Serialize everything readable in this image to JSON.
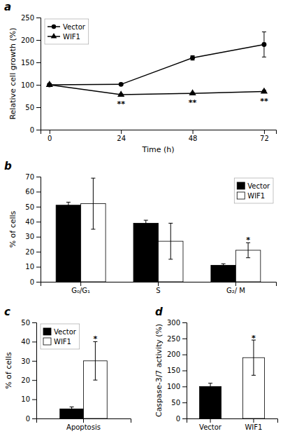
{
  "chart_data": [
    {
      "type": "line",
      "title": "a",
      "xlabel": "Time (h)",
      "ylabel": "Relative cell growth (%)",
      "x": [
        0,
        24,
        48,
        72
      ],
      "xlim": [
        -3,
        76
      ],
      "xticks": [
        0,
        24,
        48,
        72
      ],
      "ylim": [
        0,
        250
      ],
      "yticks": [
        0,
        50,
        100,
        150,
        200,
        250
      ],
      "series": [
        {
          "name": "Vector",
          "color": "#000000",
          "marker": "circle",
          "line_style": "solid",
          "values": [
            100,
            101,
            160,
            190
          ],
          "errors": [
            2,
            2,
            5,
            28
          ]
        },
        {
          "name": "WIF1",
          "color": "#000000",
          "marker": "triangle",
          "line_style": "solid",
          "values": [
            100,
            78,
            81,
            85
          ],
          "errors": [
            2,
            2,
            2,
            3
          ]
        }
      ],
      "annotations": [
        {
          "text": "**",
          "x": 24,
          "y": 66
        },
        {
          "text": "**",
          "x": 48,
          "y": 69
        },
        {
          "text": "**",
          "x": 72,
          "y": 72
        }
      ],
      "legend": "upper left",
      "grid": false
    },
    {
      "type": "bar",
      "title": "b",
      "ylabel": "% of cells",
      "categories": [
        "G₀/G₁",
        "S",
        "G₂/ M"
      ],
      "ylim": [
        0,
        70
      ],
      "yticks": [
        0,
        10,
        20,
        30,
        40,
        50,
        60,
        70
      ],
      "series": [
        {
          "name": "Vector",
          "color": "#000000",
          "values": [
            51,
            39,
            11
          ],
          "errors": [
            2,
            2,
            1
          ]
        },
        {
          "name": "WIF1",
          "color": "#ffffff",
          "values": [
            52,
            27,
            21
          ],
          "errors": [
            17,
            12,
            5
          ]
        }
      ],
      "annotations": [
        {
          "text": "*",
          "x": "G₂/ M",
          "series": "WIF1",
          "y": 27
        }
      ],
      "legend": "upper right",
      "grid": false
    },
    {
      "type": "bar",
      "title": "c",
      "ylabel": "% of cells",
      "categories": [
        "Apoptosis"
      ],
      "ylim": [
        0,
        50
      ],
      "yticks": [
        0,
        10,
        20,
        30,
        40,
        50
      ],
      "series": [
        {
          "name": "Vector",
          "color": "#000000",
          "values": [
            5
          ],
          "errors": [
            1
          ]
        },
        {
          "name": "WIF1",
          "color": "#ffffff",
          "values": [
            30
          ],
          "errors": [
            10
          ]
        }
      ],
      "annotations": [
        {
          "text": "*",
          "x": "Apoptosis",
          "series": "WIF1",
          "y": 41
        }
      ],
      "legend": "upper left",
      "grid": false
    },
    {
      "type": "bar",
      "title": "d",
      "ylabel": "Caspase-3/7 activity (%)",
      "categories": [
        "Vector",
        "WIF1"
      ],
      "values": [
        100,
        190
      ],
      "errors": [
        10,
        55
      ],
      "colors": [
        "#000000",
        "#ffffff"
      ],
      "ylim": [
        0,
        300
      ],
      "yticks": [
        0,
        50,
        100,
        150,
        200,
        250,
        300
      ],
      "annotations": [
        {
          "text": "*",
          "x": "WIF1",
          "y": 248
        }
      ],
      "grid": false
    }
  ]
}
